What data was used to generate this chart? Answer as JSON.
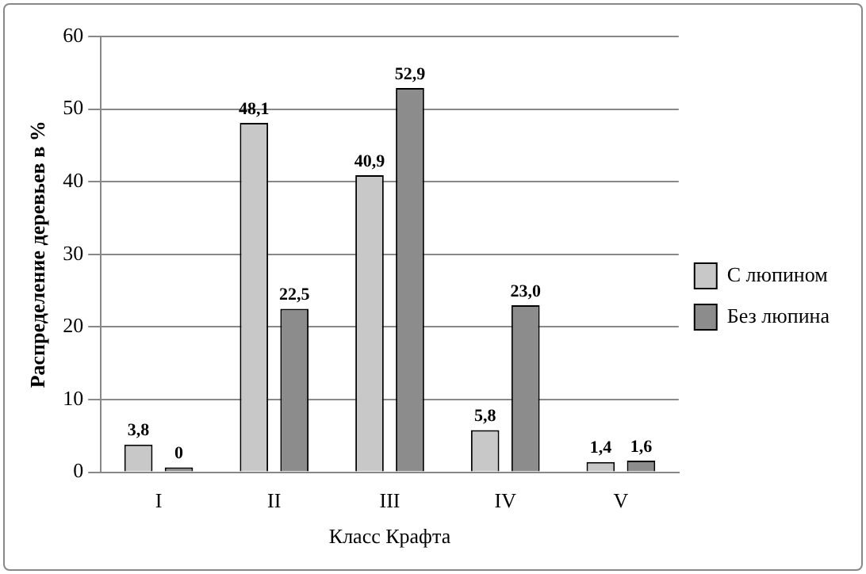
{
  "chart_data": {
    "type": "bar",
    "xlabel": "Класс Крафта",
    "ylabel": "Распределение деревьев в %",
    "categories": [
      "I",
      "II",
      "III",
      "IV",
      "V"
    ],
    "series": [
      {
        "name": "С люпином",
        "color": "#c8c8c8",
        "values": [
          3.8,
          48.1,
          40.9,
          5.8,
          1.4
        ],
        "value_labels": [
          "3,8",
          "48,1",
          "40,9",
          "5,8",
          "1,4"
        ]
      },
      {
        "name": "Без люпина",
        "color": "#8c8c8c",
        "values": [
          0,
          22.5,
          52.9,
          23.0,
          1.6
        ],
        "value_labels": [
          "0",
          "22,5",
          "52,9",
          "23,0",
          "1,6"
        ]
      }
    ],
    "ylim": [
      0,
      60
    ],
    "yticks": [
      0,
      10,
      20,
      30,
      40,
      50,
      60
    ],
    "grid": "y",
    "legend": "right"
  }
}
